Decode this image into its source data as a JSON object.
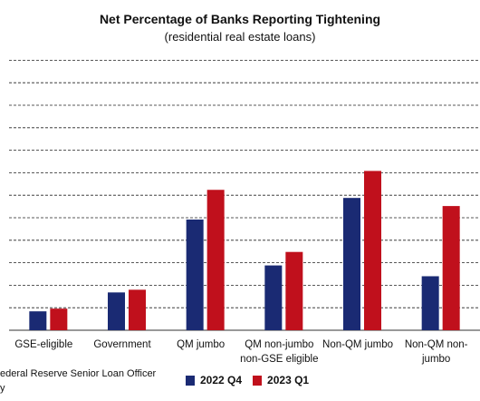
{
  "title": "Net Percentage of Banks Reporting Tightening",
  "subtitle": "(residential real estate loans)",
  "source": "ederal Reserve Senior Loan Officer\ny",
  "colors": {
    "q4": "#1a2a73",
    "q1": "#c0101c"
  },
  "chart_data": {
    "type": "bar",
    "title": "Net Percentage of Banks Reporting Tightening",
    "subtitle": "(residential real estate loans)",
    "categories": [
      "GSE-eligible",
      "Government",
      "QM jumbo",
      "QM non-jumbo non-GSE eligible",
      "Non-QM jumbo",
      "Non-QM non-jumbo"
    ],
    "category_labels": [
      [
        "GSE-eligible"
      ],
      [
        "Government"
      ],
      [
        "QM jumbo"
      ],
      [
        "QM non-jumbo",
        "non-GSE eligible"
      ],
      [
        "Non-QM jumbo"
      ],
      [
        "Non-QM non-",
        "jumbo"
      ]
    ],
    "series": [
      {
        "name": "2022 Q4",
        "values": [
          3.5,
          7,
          20.5,
          12,
          24.5,
          10
        ]
      },
      {
        "name": "2023 Q1",
        "values": [
          4,
          7.5,
          26,
          14.5,
          29.5,
          23
        ]
      }
    ],
    "ylim": [
      0,
      50
    ],
    "gridlines": 12,
    "grid": true,
    "legend": "bottom"
  }
}
